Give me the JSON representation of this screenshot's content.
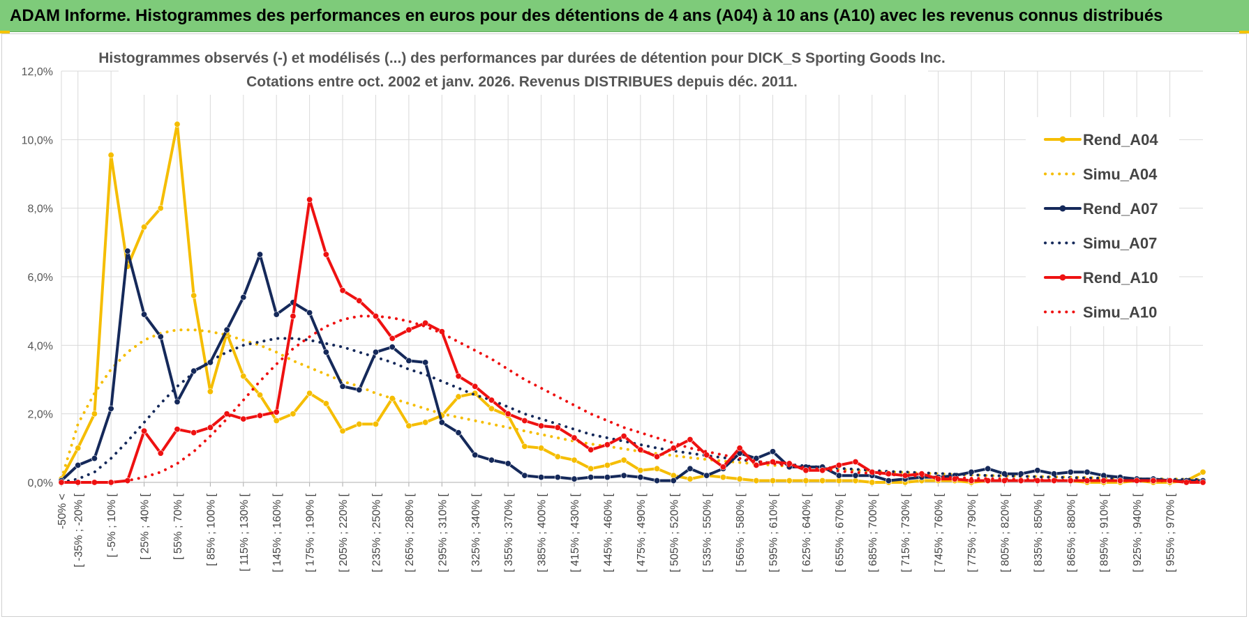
{
  "banner": {
    "title": "ADAM Informe. Histogrammes des performances en euros pour des détentions de 4 ans (A04) à 10 ans (A10) avec les revenus connus distribués",
    "background": "#7ecb7a"
  },
  "chart_data": {
    "type": "line",
    "title": "Histogrammes observés (-) et modélisés (...) des performances par durées de détention pour DICK_S Sporting Goods Inc.",
    "subtitle": "Cotations entre oct. 2002 et janv. 2026. Revenus DISTRIBUES depuis déc. 2011.",
    "ylim": [
      0,
      12
    ],
    "yticks": [
      "0,0%",
      "2,0%",
      "4,0%",
      "6,0%",
      "8,0%",
      "10,0%",
      "12,0%"
    ],
    "xtick_labels": [
      "-50% <",
      "[ -35% ; -20% [",
      "[ -5% ; 10% [",
      "[ 25% ; 40% [",
      "[ 55% ; 70% [",
      "[ 85% ; 100% [",
      "[ 115% ; 130% [",
      "[ 145% ; 160% [",
      "[ 175% ; 190% [",
      "[ 205% ; 220% [",
      "[ 235% ; 250% [",
      "[ 265% ; 280% [",
      "[ 295% ; 310% [",
      "[ 325% ; 340% [",
      "[ 355% ; 370% [",
      "[ 385% ; 400% [",
      "[ 415% ; 430% [",
      "[ 445% ; 460% [",
      "[ 475% ; 490% [",
      "[ 505% ; 520% [",
      "[ 535% ; 550% [",
      "[ 565% ; 580% [",
      "[ 595% ; 610% [",
      "[ 625% ; 640% [",
      "[ 655% ; 670% [",
      "[ 685% ; 700% [",
      "[ 715% ; 730% [",
      "[ 745% ; 760% [",
      "[ 775% ; 790% [",
      "[ 805% ; 820% [",
      "[ 835% ; 850% [",
      "[ 865% ; 880% [",
      "[ 895% ; 910% [",
      "[ 925% ; 940% [",
      "[ 955% ; 970% ["
    ],
    "n_categories": 70,
    "legend_position": "right",
    "series": [
      {
        "name": "Rend_A04",
        "color": "#f5bd00",
        "style": "solid",
        "values": [
          0.1,
          1.0,
          2.0,
          9.55,
          6.3,
          7.45,
          8.0,
          10.45,
          5.45,
          2.65,
          4.35,
          3.1,
          2.55,
          1.8,
          2.0,
          2.6,
          2.3,
          1.5,
          1.7,
          1.7,
          2.45,
          1.65,
          1.75,
          1.95,
          2.5,
          2.6,
          2.15,
          1.95,
          1.05,
          1.0,
          0.75,
          0.65,
          0.4,
          0.5,
          0.65,
          0.35,
          0.4,
          0.2,
          0.1,
          0.2,
          0.15,
          0.1,
          0.05,
          0.05,
          0.05,
          0.05,
          0.05,
          0.05,
          0.05,
          0.0,
          0.0,
          0.0,
          0.05,
          0.05,
          0.05,
          0.0,
          0.05,
          0.05,
          0.05,
          0.05,
          0.05,
          0.05,
          0.0,
          0.0,
          0.0,
          0.05,
          0.0,
          0.0,
          0.05,
          0.3
        ]
      },
      {
        "name": "Simu_A04",
        "color": "#f5bd00",
        "style": "dotted",
        "values": [
          0.1,
          1.7,
          2.6,
          3.3,
          3.8,
          4.15,
          4.35,
          4.45,
          4.45,
          4.4,
          4.3,
          4.15,
          4.0,
          3.8,
          3.55,
          3.35,
          3.15,
          2.95,
          2.8,
          2.6,
          2.45,
          2.3,
          2.15,
          2.0,
          1.9,
          1.8,
          1.7,
          1.6,
          1.5,
          1.4,
          1.3,
          1.2,
          1.12,
          1.05,
          0.98,
          0.9,
          0.84,
          0.78,
          0.72,
          0.67,
          0.62,
          0.58,
          0.54,
          0.5,
          0.47,
          0.44,
          0.41,
          0.38,
          0.35,
          0.33,
          0.31,
          0.29,
          0.27,
          0.25,
          0.23,
          0.22,
          0.2,
          0.19,
          0.18,
          0.17,
          0.16,
          0.15,
          0.14,
          0.13,
          0.12,
          0.11,
          0.1,
          0.1,
          0.09,
          0.09
        ]
      },
      {
        "name": "Rend_A07",
        "color": "#15295a",
        "style": "solid",
        "values": [
          0.05,
          0.5,
          0.7,
          2.15,
          6.75,
          4.9,
          4.25,
          2.35,
          3.25,
          3.5,
          4.45,
          5.4,
          6.65,
          4.9,
          5.25,
          4.95,
          3.8,
          2.8,
          2.7,
          3.8,
          3.95,
          3.55,
          3.5,
          1.75,
          1.45,
          0.8,
          0.65,
          0.55,
          0.2,
          0.15,
          0.15,
          0.1,
          0.15,
          0.15,
          0.2,
          0.15,
          0.05,
          0.05,
          0.4,
          0.2,
          0.4,
          0.85,
          0.7,
          0.9,
          0.45,
          0.45,
          0.45,
          0.2,
          0.2,
          0.2,
          0.05,
          0.1,
          0.15,
          0.15,
          0.2,
          0.3,
          0.4,
          0.25,
          0.25,
          0.35,
          0.25,
          0.3,
          0.3,
          0.2,
          0.15,
          0.1,
          0.1,
          0.05,
          0.05,
          0.05
        ]
      },
      {
        "name": "Simu_A07",
        "color": "#15295a",
        "style": "dotted",
        "values": [
          0.0,
          0.1,
          0.3,
          0.7,
          1.2,
          1.75,
          2.3,
          2.8,
          3.2,
          3.55,
          3.8,
          4.0,
          4.1,
          4.2,
          4.2,
          4.15,
          4.05,
          3.95,
          3.8,
          3.65,
          3.5,
          3.3,
          3.15,
          2.95,
          2.75,
          2.55,
          2.4,
          2.2,
          2.0,
          1.85,
          1.7,
          1.55,
          1.4,
          1.3,
          1.2,
          1.1,
          1.0,
          0.92,
          0.85,
          0.78,
          0.72,
          0.66,
          0.61,
          0.56,
          0.52,
          0.48,
          0.44,
          0.41,
          0.38,
          0.35,
          0.32,
          0.3,
          0.28,
          0.26,
          0.24,
          0.22,
          0.2,
          0.19,
          0.18,
          0.16,
          0.15,
          0.14,
          0.13,
          0.12,
          0.11,
          0.1,
          0.1,
          0.09,
          0.09,
          0.08
        ]
      },
      {
        "name": "Rend_A10",
        "color": "#ee1111",
        "style": "solid",
        "values": [
          0.0,
          0.0,
          0.0,
          0.0,
          0.05,
          1.5,
          0.85,
          1.55,
          1.45,
          1.6,
          2.0,
          1.85,
          1.95,
          2.05,
          4.85,
          8.25,
          6.65,
          5.6,
          5.3,
          4.85,
          4.2,
          4.45,
          4.65,
          4.4,
          3.1,
          2.8,
          2.4,
          2.0,
          1.8,
          1.65,
          1.6,
          1.3,
          0.95,
          1.1,
          1.35,
          0.95,
          0.75,
          1.0,
          1.25,
          0.8,
          0.45,
          1.0,
          0.5,
          0.6,
          0.55,
          0.35,
          0.35,
          0.5,
          0.6,
          0.3,
          0.25,
          0.2,
          0.25,
          0.1,
          0.1,
          0.05,
          0.05,
          0.05,
          0.05,
          0.05,
          0.05,
          0.05,
          0.05,
          0.05,
          0.05,
          0.05,
          0.05,
          0.05,
          0.0,
          0.0
        ]
      },
      {
        "name": "Simu_A10",
        "color": "#ee1111",
        "style": "dotted",
        "values": [
          0.0,
          0.0,
          0.0,
          0.0,
          0.05,
          0.15,
          0.3,
          0.55,
          0.9,
          1.35,
          1.85,
          2.4,
          2.95,
          3.45,
          3.9,
          4.25,
          4.55,
          4.75,
          4.85,
          4.85,
          4.8,
          4.7,
          4.55,
          4.35,
          4.1,
          3.85,
          3.6,
          3.3,
          3.0,
          2.75,
          2.5,
          2.25,
          2.0,
          1.8,
          1.6,
          1.45,
          1.3,
          1.15,
          1.0,
          0.9,
          0.8,
          0.7,
          0.62,
          0.55,
          0.48,
          0.43,
          0.38,
          0.33,
          0.29,
          0.26,
          0.23,
          0.2,
          0.18,
          0.16,
          0.14,
          0.12,
          0.11,
          0.1,
          0.09,
          0.08,
          0.07,
          0.06,
          0.06,
          0.05,
          0.05,
          0.04,
          0.04,
          0.04,
          0.03,
          0.03
        ]
      }
    ]
  }
}
